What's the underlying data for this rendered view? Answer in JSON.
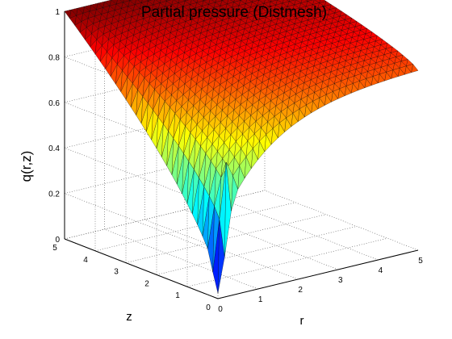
{
  "chart_data": {
    "type": "surface",
    "title": "Partial pressure (Distmesh)",
    "xlabel": "r",
    "ylabel": "z",
    "zlabel": "q(r,z)",
    "xlim": [
      0,
      5
    ],
    "ylim": [
      0,
      5
    ],
    "zlim": [
      0,
      1
    ],
    "x_ticks": [
      "0",
      "1",
      "2",
      "3",
      "4",
      "5"
    ],
    "y_ticks": [
      "0",
      "1",
      "2",
      "3",
      "4",
      "5"
    ],
    "z_ticks": [
      "0",
      "0.2",
      "0.4",
      "0.6",
      "0.8",
      "1"
    ],
    "grid": true,
    "colormap": "jet",
    "surface_samples": {
      "r": [
        0,
        0.5,
        1,
        2,
        3,
        4,
        5
      ],
      "z_at_0": [
        0,
        0.3,
        0.45,
        0.62,
        0.72,
        0.78,
        0.82
      ],
      "z_at_1": [
        0.3,
        0.42,
        0.52,
        0.66,
        0.75,
        0.8,
        0.84
      ],
      "z_at_5": [
        1,
        1,
        1,
        1,
        1,
        1,
        1
      ]
    }
  }
}
